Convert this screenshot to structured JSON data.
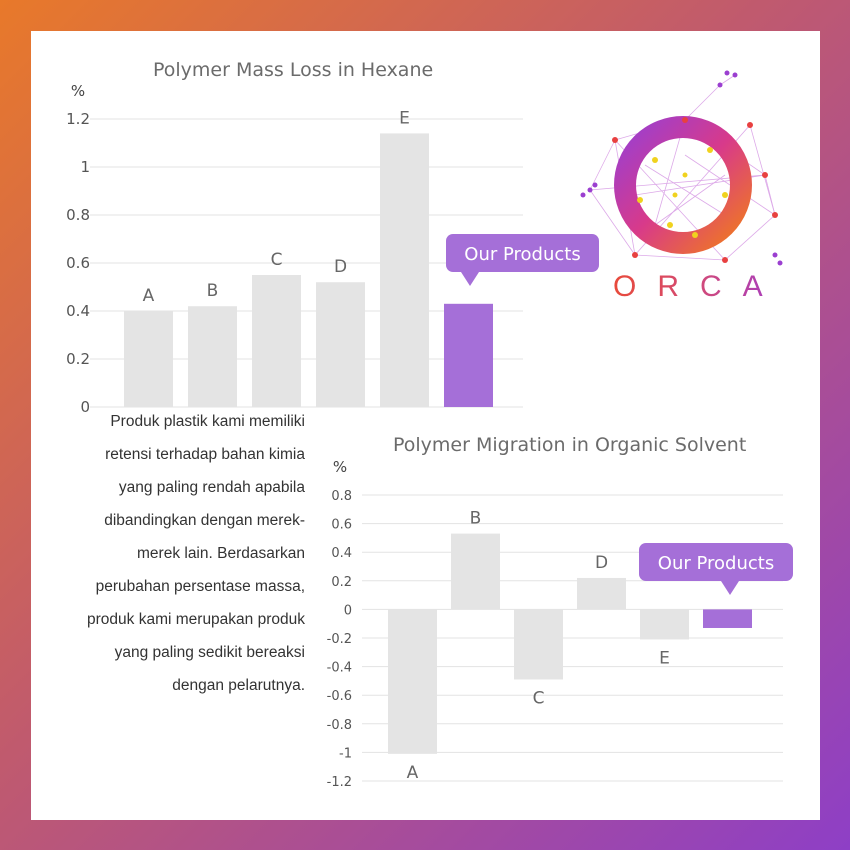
{
  "body_text": "Produk plastik kami memiliki retensi terhadap bahan kimia yang paling rendah apabila dibandingkan dengan merek-merek lain. Berdasarkan perubahan persentase massa, produk kami merupakan produk yang paling sedikit bereaksi dengan pelarutnya.",
  "logo": {
    "name": "ORCA"
  },
  "colors": {
    "bar_gray": "#e4e4e4",
    "highlight": "#a56fd8",
    "callout": "#a56fd8"
  },
  "chart_data": [
    {
      "type": "bar",
      "title": "Polymer Mass Loss in Hexane",
      "ylabel": "%",
      "categories": [
        "A",
        "B",
        "C",
        "D",
        "E",
        "Our Products"
      ],
      "values": [
        0.4,
        0.42,
        0.55,
        0.52,
        1.14,
        0.43
      ],
      "ylim": [
        0,
        1.2
      ],
      "yticks": [
        "0",
        "0.2",
        "0.4",
        "0.6",
        "0.8",
        "1",
        "1.2"
      ],
      "grid": true,
      "callout": "Our Products"
    },
    {
      "type": "bar",
      "title": "Polymer Migration in Organic Solvent",
      "ylabel": "%",
      "categories": [
        "A",
        "B",
        "C",
        "D",
        "E",
        "Our Products"
      ],
      "values": [
        -1.01,
        0.53,
        -0.49,
        0.22,
        -0.21,
        -0.13
      ],
      "ylim": [
        -1.2,
        0.8
      ],
      "yticks": [
        "-1.2",
        "-1",
        "-0.8",
        "-0.6",
        "-0.4",
        "-0.2",
        "0",
        "0.2",
        "0.4",
        "0.6",
        "0.8"
      ],
      "grid": true,
      "callout": "Our Products"
    }
  ]
}
